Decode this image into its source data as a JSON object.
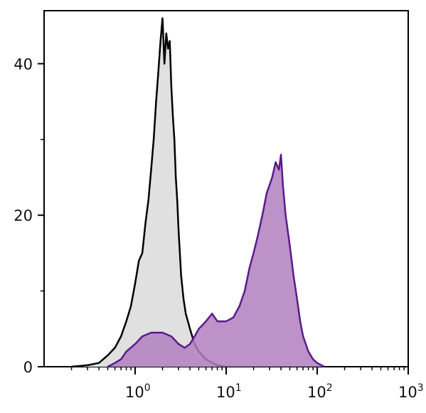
{
  "chart_data": {
    "type": "area",
    "title": "",
    "xlabel": "",
    "ylabel": "",
    "x_scale": "log",
    "xlim": [
      0.1,
      1000
    ],
    "ylim": [
      0,
      47
    ],
    "grid": false,
    "x_ticks": [
      {
        "value": 1,
        "base": "10",
        "exp": "0"
      },
      {
        "value": 10,
        "base": "10",
        "exp": "1"
      },
      {
        "value": 100,
        "base": "10",
        "exp": "2"
      },
      {
        "value": 1000,
        "base": "10",
        "exp": "3"
      }
    ],
    "y_ticks": [
      {
        "value": 0,
        "label": "0"
      },
      {
        "value": 20,
        "label": "20"
      },
      {
        "value": 40,
        "label": "40"
      }
    ],
    "y_minor_ticks": [
      10,
      30
    ],
    "series": [
      {
        "color": "#000000",
        "fill": "#e0e0e0",
        "x": [
          0.2,
          0.3,
          0.4,
          0.5,
          0.6,
          0.7,
          0.8,
          0.9,
          1.0,
          1.1,
          1.2,
          1.3,
          1.4,
          1.5,
          1.6,
          1.7,
          1.8,
          1.9,
          2.0,
          2.1,
          2.2,
          2.3,
          2.4,
          2.5,
          2.6,
          2.7,
          2.8,
          2.9,
          3.0,
          3.2,
          3.4,
          3.6,
          3.8,
          4.0,
          4.5,
          5.0,
          6.0,
          7.0,
          8.0,
          10.0
        ],
        "y": [
          0,
          0.2,
          0.5,
          1.5,
          2.5,
          4,
          6,
          8,
          11,
          14,
          15,
          19,
          22,
          26,
          30,
          35,
          39,
          43,
          46,
          40,
          44,
          42,
          43,
          37,
          33,
          30,
          25,
          22,
          18,
          12,
          9,
          7,
          6,
          5,
          3,
          2,
          1,
          0.5,
          0.2,
          0
        ]
      },
      {
        "color": "#5b1a8c",
        "fill": "#b07fbf",
        "x": [
          0.5,
          0.6,
          0.7,
          0.8,
          1.0,
          1.2,
          1.5,
          2.0,
          2.5,
          3.0,
          3.5,
          4.0,
          4.5,
          5.0,
          6.0,
          7.0,
          8.0,
          10.0,
          12.0,
          14.0,
          16.0,
          18.0,
          20.0,
          22.0,
          25.0,
          28.0,
          30.0,
          32.0,
          35.0,
          38.0,
          40.0,
          42.0,
          45.0,
          50.0,
          55.0,
          60.0,
          65.0,
          70.0,
          80.0,
          90.0,
          100.0,
          120.0
        ],
        "y": [
          0,
          0.5,
          1,
          2,
          3,
          4,
          4.5,
          4.5,
          4,
          3,
          2.5,
          3,
          4,
          5,
          6,
          7,
          6,
          6,
          6.5,
          8,
          10,
          13,
          15,
          17,
          20,
          23,
          24,
          25,
          27,
          26,
          28,
          24,
          20,
          16,
          12,
          9,
          6,
          4,
          2,
          1,
          0.5,
          0
        ]
      }
    ]
  }
}
